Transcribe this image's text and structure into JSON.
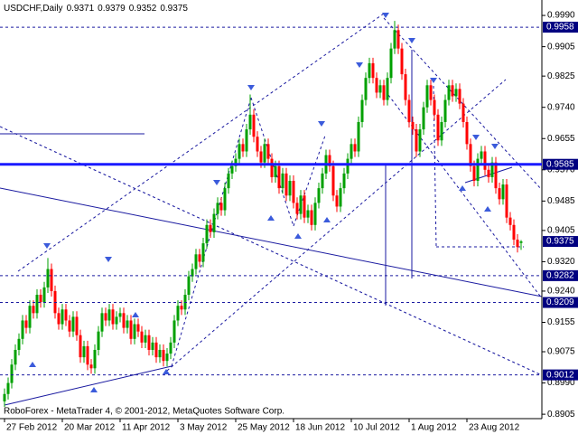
{
  "chart_data": {
    "type": "candlestick",
    "title": "USDCHF,Daily",
    "copyright": "RoboForex - MetaTrader 4, © 2001-2012, MetaQuotes Software Corp.",
    "up_color": "#00a000",
    "down_color": "#ff0000",
    "label_color": "#000080",
    "ylim": [
      0.8893,
      1.0032
    ],
    "yticks": [
      {
        "value": 0.999,
        "label": "0.9990"
      },
      0.9905,
      0.9825,
      {
        "value": 0.974,
        "label": "0.9740"
      },
      0.9655,
      {
        "value": 0.957,
        "label": "0.9570"
      },
      0.9485,
      0.9405,
      {
        "value": 0.932,
        "label": "0.9320"
      },
      {
        "value": 0.924,
        "label": "0.9240"
      },
      0.9155,
      0.9075,
      {
        "value": 0.899,
        "label": "0.8990"
      },
      0.8905
    ],
    "levels": [
      {
        "value": 0.9958,
        "line": "dashed"
      },
      {
        "value": 0.9585,
        "line": "thick"
      },
      {
        "value": 0.9375,
        "line": "none"
      },
      {
        "value": 0.9282,
        "line": "dashed"
      },
      {
        "value": 0.9209,
        "line": "dashed"
      },
      {
        "value": 0.9012,
        "line": "dashed"
      }
    ],
    "categories": [
      "27 Feb 2012",
      null,
      null,
      null,
      null,
      null,
      null,
      null,
      null,
      null,
      null,
      null,
      null,
      null,
      null,
      null,
      "20 Mar 2012",
      null,
      null,
      null,
      null,
      null,
      null,
      null,
      null,
      null,
      null,
      null,
      null,
      null,
      null,
      null,
      "11 Apr 2012",
      null,
      null,
      null,
      null,
      null,
      null,
      null,
      null,
      null,
      null,
      null,
      null,
      null,
      null,
      null,
      "3 May 2012",
      null,
      null,
      null,
      null,
      null,
      null,
      null,
      null,
      null,
      null,
      null,
      null,
      null,
      null,
      null,
      "25 May 2012",
      null,
      null,
      null,
      null,
      null,
      null,
      null,
      null,
      null,
      null,
      null,
      null,
      null,
      null,
      null,
      "18 Jun 2012",
      null,
      null,
      null,
      null,
      null,
      null,
      null,
      null,
      null,
      null,
      null,
      null,
      null,
      null,
      null,
      "10 Jul 2012",
      null,
      null,
      null,
      null,
      null,
      null,
      null,
      null,
      null,
      null,
      null,
      null,
      null,
      null,
      null,
      "1 Aug 2012",
      null,
      null,
      null,
      null,
      null,
      null,
      null,
      null,
      null,
      null,
      null,
      null,
      null,
      null,
      null,
      "23 Aug 2012",
      null,
      null,
      null,
      null,
      null,
      null,
      null,
      null,
      null,
      null,
      null,
      null,
      null,
      null,
      null
    ],
    "ohlc": [
      [
        0.894,
        0.8975,
        0.8925,
        0.896
      ],
      [
        0.896,
        0.9005,
        0.8945,
        0.899
      ],
      [
        0.899,
        0.9055,
        0.8975,
        0.904
      ],
      [
        0.904,
        0.9095,
        0.9025,
        0.908
      ],
      [
        0.908,
        0.9125,
        0.9065,
        0.911
      ],
      [
        0.911,
        0.9175,
        0.9095,
        0.916
      ],
      [
        0.916,
        0.9175,
        0.9125,
        0.914
      ],
      [
        0.914,
        0.9215,
        0.9125,
        0.92
      ],
      [
        0.92,
        0.9215,
        0.9165,
        0.918
      ],
      [
        0.918,
        0.9245,
        0.9165,
        0.923
      ],
      [
        0.923,
        0.9245,
        0.9195,
        0.921
      ],
      [
        0.921,
        0.9265,
        0.9195,
        0.925
      ],
      [
        0.925,
        0.933,
        0.9235,
        0.93
      ],
      [
        0.93,
        0.9315,
        0.9225,
        0.924
      ],
      [
        0.924,
        0.9255,
        0.9165,
        0.918
      ],
      [
        0.918,
        0.9195,
        0.9135,
        0.915
      ],
      [
        0.915,
        0.9205,
        0.9135,
        0.919
      ],
      [
        0.919,
        0.9205,
        0.9145,
        0.916
      ],
      [
        0.916,
        0.9175,
        0.9115,
        0.913
      ],
      [
        0.913,
        0.9185,
        0.9115,
        0.917
      ],
      [
        0.917,
        0.9185,
        0.9105,
        0.912
      ],
      [
        0.912,
        0.9135,
        0.9045,
        0.906
      ],
      [
        0.906,
        0.9105,
        0.9045,
        0.909
      ],
      [
        0.909,
        0.9105,
        0.9025,
        0.904
      ],
      [
        0.904,
        0.9055,
        0.9015,
        0.903
      ],
      [
        0.903,
        0.9095,
        0.9015,
        0.908
      ],
      [
        0.908,
        0.9145,
        0.9065,
        0.913
      ],
      [
        0.913,
        0.9195,
        0.9115,
        0.918
      ],
      [
        0.918,
        0.9195,
        0.9145,
        0.916
      ],
      [
        0.916,
        0.9205,
        0.9145,
        0.919
      ],
      [
        0.919,
        0.9205,
        0.9135,
        0.915
      ],
      [
        0.915,
        0.9185,
        0.9135,
        0.917
      ],
      [
        0.917,
        0.9195,
        0.9155,
        0.918
      ],
      [
        0.918,
        0.9195,
        0.9125,
        0.914
      ],
      [
        0.914,
        0.9175,
        0.9125,
        0.916
      ],
      [
        0.916,
        0.9175,
        0.9095,
        0.911
      ],
      [
        0.911,
        0.9165,
        0.9095,
        0.915
      ],
      [
        0.915,
        0.9165,
        0.9115,
        0.913
      ],
      [
        0.913,
        0.9145,
        0.9085,
        0.91
      ],
      [
        0.91,
        0.9135,
        0.9085,
        0.912
      ],
      [
        0.912,
        0.9135,
        0.9065,
        0.908
      ],
      [
        0.908,
        0.9115,
        0.9065,
        0.91
      ],
      [
        0.91,
        0.9115,
        0.9045,
        0.906
      ],
      [
        0.906,
        0.9095,
        0.9045,
        0.908
      ],
      [
        0.908,
        0.9095,
        0.9035,
        0.905
      ],
      [
        0.905,
        0.9085,
        0.9035,
        0.907
      ],
      [
        0.907,
        0.9115,
        0.9055,
        0.91
      ],
      [
        0.91,
        0.9175,
        0.9085,
        0.916
      ],
      [
        0.916,
        0.9215,
        0.9145,
        0.92
      ],
      [
        0.92,
        0.9215,
        0.9175,
        0.919
      ],
      [
        0.919,
        0.9245,
        0.9175,
        0.923
      ],
      [
        0.923,
        0.9295,
        0.9215,
        0.928
      ],
      [
        0.928,
        0.9315,
        0.9265,
        0.93
      ],
      [
        0.93,
        0.9355,
        0.9285,
        0.934
      ],
      [
        0.934,
        0.9355,
        0.9305,
        0.932
      ],
      [
        0.932,
        0.9385,
        0.9305,
        0.937
      ],
      [
        0.937,
        0.9435,
        0.9355,
        0.942
      ],
      [
        0.942,
        0.9435,
        0.9385,
        0.94
      ],
      [
        0.94,
        0.9465,
        0.9385,
        0.945
      ],
      [
        0.945,
        0.9495,
        0.9435,
        0.948
      ],
      [
        0.948,
        0.9495,
        0.9445,
        0.946
      ],
      [
        0.946,
        0.9535,
        0.9445,
        0.952
      ],
      [
        0.952,
        0.9575,
        0.9505,
        0.956
      ],
      [
        0.956,
        0.9595,
        0.9545,
        0.958
      ],
      [
        0.958,
        0.9615,
        0.9565,
        0.96
      ],
      [
        0.96,
        0.9655,
        0.9585,
        0.964
      ],
      [
        0.964,
        0.9655,
        0.9605,
        0.962
      ],
      [
        0.962,
        0.9695,
        0.9605,
        0.968
      ],
      [
        0.968,
        0.9775,
        0.9665,
        0.972
      ],
      [
        0.972,
        0.9735,
        0.9645,
        0.966
      ],
      [
        0.966,
        0.9675,
        0.9605,
        0.962
      ],
      [
        0.962,
        0.9635,
        0.9575,
        0.959
      ],
      [
        0.959,
        0.9655,
        0.9575,
        0.964
      ],
      [
        0.964,
        0.9655,
        0.9585,
        0.96
      ],
      [
        0.96,
        0.9615,
        0.9535,
        0.955
      ],
      [
        0.955,
        0.9595,
        0.9535,
        0.958
      ],
      [
        0.958,
        0.9595,
        0.9505,
        0.952
      ],
      [
        0.952,
        0.9575,
        0.9505,
        0.956
      ],
      [
        0.956,
        0.9575,
        0.9485,
        0.95
      ],
      [
        0.95,
        0.9555,
        0.9485,
        0.954
      ],
      [
        0.954,
        0.9555,
        0.9465,
        0.948
      ],
      [
        0.948,
        0.9495,
        0.9435,
        0.945
      ],
      [
        0.945,
        0.9515,
        0.9435,
        0.95
      ],
      [
        0.95,
        0.9515,
        0.9425,
        0.944
      ],
      [
        0.944,
        0.9475,
        0.9425,
        0.946
      ],
      [
        0.946,
        0.9475,
        0.9405,
        0.942
      ],
      [
        0.942,
        0.9495,
        0.9405,
        0.948
      ],
      [
        0.948,
        0.9535,
        0.9465,
        0.952
      ],
      [
        0.952,
        0.9575,
        0.9505,
        0.956
      ],
      [
        0.956,
        0.9625,
        0.9545,
        0.961
      ],
      [
        0.961,
        0.9625,
        0.9565,
        0.958
      ],
      [
        0.958,
        0.9595,
        0.9485,
        0.95
      ],
      [
        0.95,
        0.9515,
        0.9455,
        0.947
      ],
      [
        0.947,
        0.9535,
        0.9455,
        0.952
      ],
      [
        0.952,
        0.9575,
        0.9505,
        0.956
      ],
      [
        0.956,
        0.9615,
        0.9545,
        0.96
      ],
      [
        0.96,
        0.9655,
        0.9585,
        0.964
      ],
      [
        0.964,
        0.9655,
        0.9605,
        0.962
      ],
      [
        0.962,
        0.9715,
        0.9605,
        0.97
      ],
      [
        0.97,
        0.9775,
        0.9685,
        0.976
      ],
      [
        0.976,
        0.9835,
        0.9745,
        0.982
      ],
      [
        0.982,
        0.9875,
        0.9805,
        0.986
      ],
      [
        0.986,
        0.9875,
        0.9805,
        0.982
      ],
      [
        0.982,
        0.9835,
        0.9765,
        0.978
      ],
      [
        0.978,
        0.9815,
        0.9765,
        0.98
      ],
      [
        0.98,
        0.9815,
        0.9745,
        0.976
      ],
      [
        0.976,
        0.9835,
        0.9745,
        0.982
      ],
      [
        0.982,
        0.9915,
        0.9805,
        0.99
      ],
      [
        0.99,
        0.9975,
        0.9885,
        0.995
      ],
      [
        0.995,
        0.9965,
        0.9885,
        0.99
      ],
      [
        0.99,
        0.9915,
        0.9815,
        0.983
      ],
      [
        0.983,
        0.9845,
        0.9745,
        0.976
      ],
      [
        0.976,
        0.9775,
        0.9685,
        0.97
      ],
      [
        0.97,
        0.9715,
        0.9665,
        0.968
      ],
      [
        0.968,
        0.9695,
        0.9605,
        0.962
      ],
      [
        0.962,
        0.9695,
        0.9605,
        0.968
      ],
      [
        0.968,
        0.9755,
        0.9665,
        0.974
      ],
      [
        0.974,
        0.9815,
        0.9725,
        0.98
      ],
      [
        0.98,
        0.9815,
        0.9745,
        0.976
      ],
      [
        0.976,
        0.9775,
        0.9705,
        0.972
      ],
      [
        0.972,
        0.9735,
        0.9635,
        0.965
      ],
      [
        0.965,
        0.9715,
        0.9635,
        0.97
      ],
      [
        0.97,
        0.9775,
        0.9685,
        0.976
      ],
      [
        0.976,
        0.9815,
        0.9745,
        0.98
      ],
      [
        0.98,
        0.9815,
        0.9755,
        0.977
      ],
      [
        0.977,
        0.9805,
        0.9755,
        0.979
      ],
      [
        0.979,
        0.9805,
        0.9735,
        0.975
      ],
      [
        0.975,
        0.9765,
        0.9685,
        0.97
      ],
      [
        0.97,
        0.9715,
        0.9625,
        0.964
      ],
      [
        0.964,
        0.9655,
        0.9565,
        0.958
      ],
      [
        0.958,
        0.9595,
        0.9525,
        0.954
      ],
      [
        0.954,
        0.9615,
        0.9525,
        0.96
      ],
      [
        0.96,
        0.9635,
        0.9585,
        0.962
      ],
      [
        0.962,
        0.9635,
        0.9555,
        0.957
      ],
      [
        0.957,
        0.9585,
        0.9535,
        0.955
      ],
      [
        0.955,
        0.9605,
        0.9535,
        0.959
      ],
      [
        0.959,
        0.9605,
        0.9505,
        0.952
      ],
      [
        0.952,
        0.9535,
        0.9475,
        0.949
      ],
      [
        0.949,
        0.9545,
        0.9475,
        0.953
      ],
      [
        0.953,
        0.9545,
        0.9425,
        0.944
      ],
      [
        0.944,
        0.9455,
        0.9405,
        0.942
      ],
      [
        0.942,
        0.9435,
        0.9365,
        0.938
      ],
      [
        0.938,
        0.9395,
        0.9345,
        0.936
      ],
      [
        0.9371,
        0.9379,
        0.9352,
        0.9375
      ]
    ]
  }
}
